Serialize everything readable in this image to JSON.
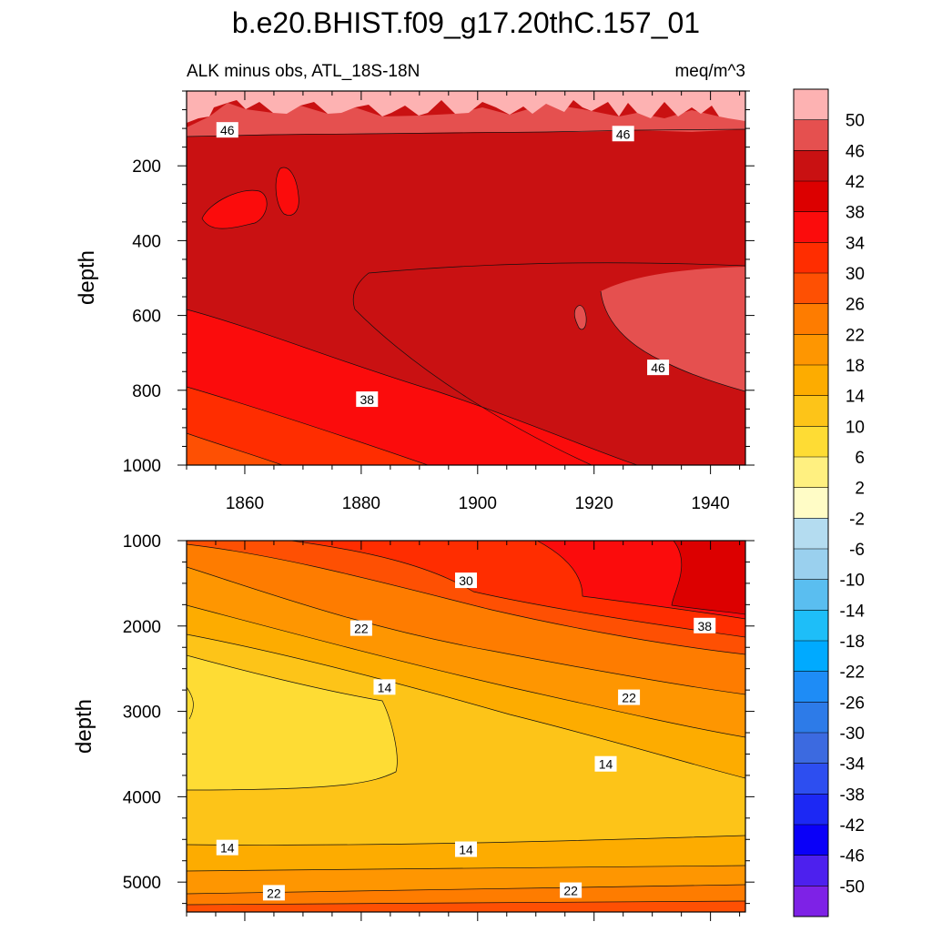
{
  "title": "b.e20.BHIST.f09_g17.20thC.157_01",
  "subtitle_left": "ALK minus obs, ATL_18S-18N",
  "subtitle_right": "meq/m^3",
  "chart_data": [
    {
      "type": "contour",
      "panel": "upper",
      "xlabel": "",
      "ylabel": "depth",
      "xlim": [
        1850,
        1946
      ],
      "ylim": [
        1000,
        0
      ],
      "x_ticks": [
        1860,
        1880,
        1900,
        1920,
        1940
      ],
      "y_ticks": [
        200,
        400,
        600,
        800,
        1000
      ],
      "contour_labels": [
        {
          "text": "46",
          "x": 1857,
          "y": 105
        },
        {
          "text": "46",
          "x": 1925,
          "y": 115
        },
        {
          "text": "46",
          "x": 1931,
          "y": 740
        },
        {
          "text": "38",
          "x": 1881,
          "y": 825
        }
      ]
    },
    {
      "type": "contour",
      "panel": "lower",
      "xlabel": "",
      "ylabel": "depth",
      "xlim": [
        1850,
        1946
      ],
      "ylim": [
        5350,
        1000
      ],
      "x_ticks": [
        1860,
        1880,
        1900,
        1920,
        1940
      ],
      "y_ticks": [
        1000,
        2000,
        3000,
        4000,
        5000
      ],
      "contour_labels": [
        {
          "text": "30",
          "x": 1898,
          "y": 1470
        },
        {
          "text": "38",
          "x": 1939,
          "y": 2000
        },
        {
          "text": "22",
          "x": 1880,
          "y": 2030
        },
        {
          "text": "14",
          "x": 1884,
          "y": 2720
        },
        {
          "text": "22",
          "x": 1926,
          "y": 2840
        },
        {
          "text": "14",
          "x": 1922,
          "y": 3620
        },
        {
          "text": "14",
          "x": 1857,
          "y": 4600
        },
        {
          "text": "14",
          "x": 1898,
          "y": 4620
        },
        {
          "text": "22",
          "x": 1865,
          "y": 5130
        },
        {
          "text": "22",
          "x": 1916,
          "y": 5100
        }
      ]
    }
  ],
  "colorbar": {
    "labels": [
      "50",
      "46",
      "42",
      "38",
      "34",
      "30",
      "26",
      "22",
      "18",
      "14",
      "10",
      "6",
      "2",
      "-2",
      "-6",
      "-10",
      "-14",
      "-18",
      "-22",
      "-26",
      "-30",
      "-34",
      "-38",
      "-42",
      "-46",
      "-50"
    ],
    "colors": [
      "#fdb2b2",
      "#e5504f",
      "#c91112",
      "#dc0000",
      "#fb0c0c",
      "#ff2d00",
      "#fe5003",
      "#fe7c00",
      "#fe9601",
      "#fdac00",
      "#fdc418",
      "#fedc34",
      "#fff080",
      "#fffcc6",
      "#b4dcf0",
      "#9ad0ee",
      "#5abef0",
      "#1ebef8",
      "#00aaff",
      "#1e8cf6",
      "#2d7be8",
      "#3c6ae0",
      "#2d4ef0",
      "#1c28f4",
      "#0a00f8",
      "#4d20ee",
      "#7e22e6"
    ]
  }
}
